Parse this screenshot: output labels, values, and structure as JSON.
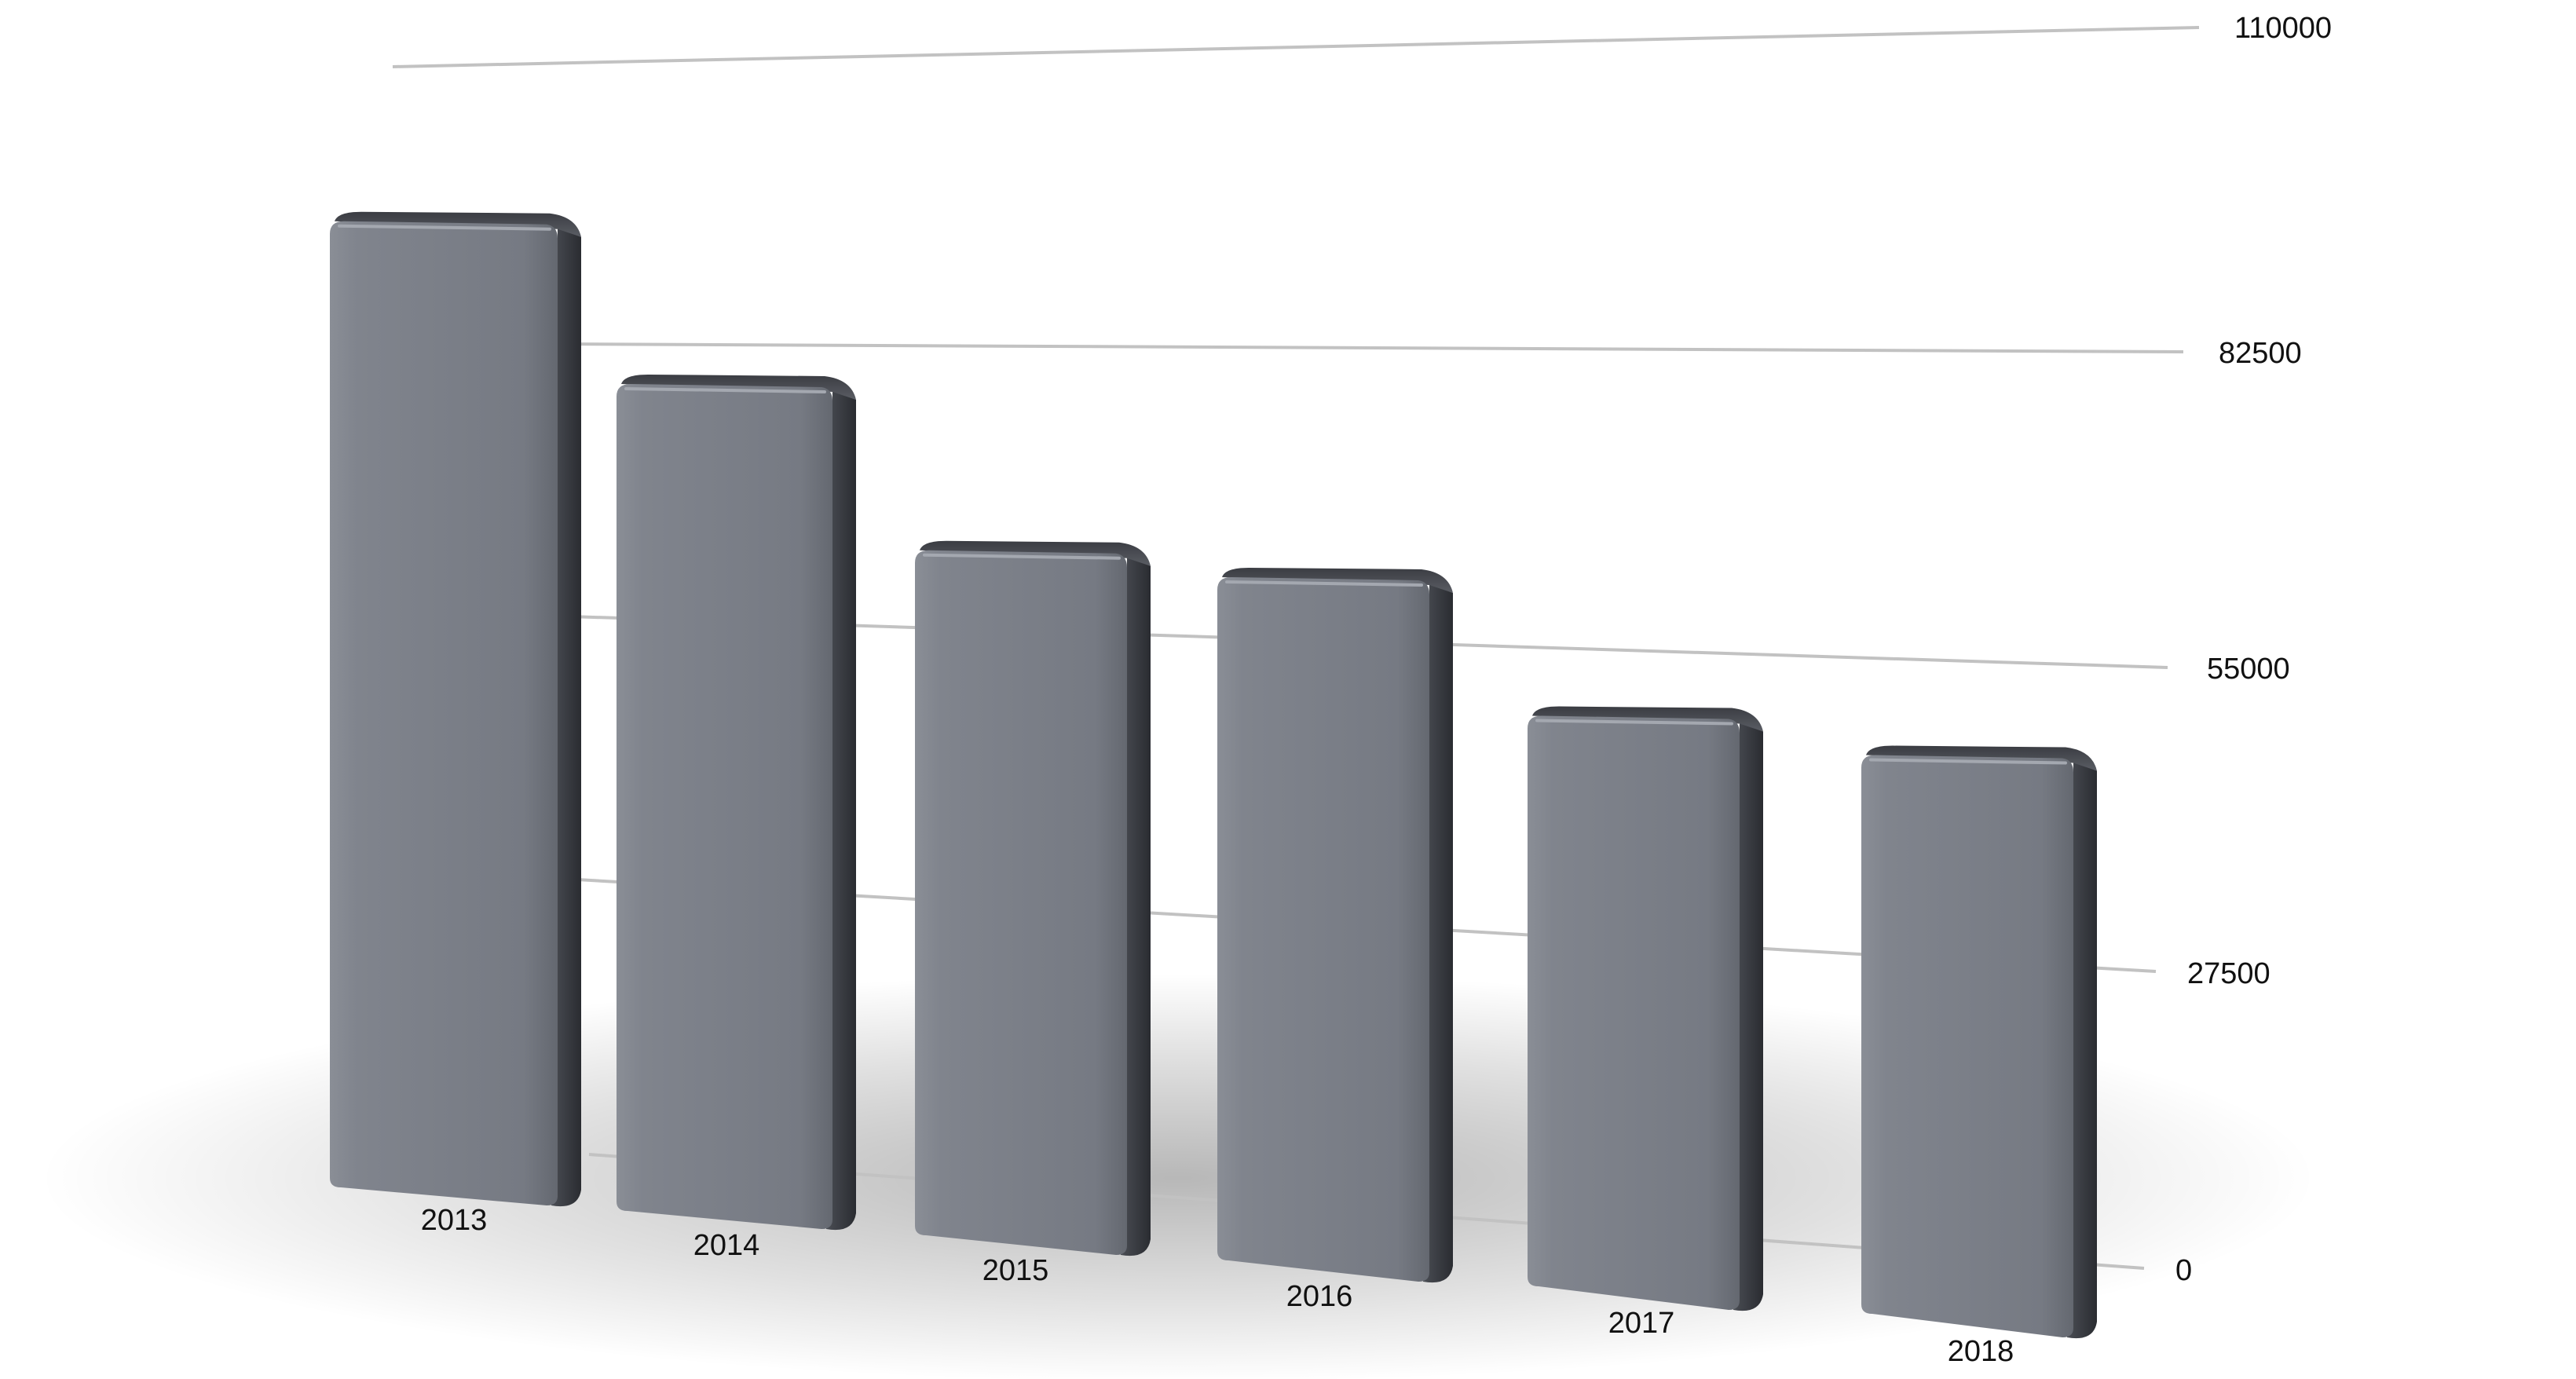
{
  "chart_data": {
    "type": "bar",
    "title": "",
    "xlabel": "",
    "ylabel": "",
    "categories": [
      "2013",
      "2014",
      "2015",
      "2016",
      "2017",
      "2018"
    ],
    "values": [
      97000,
      86000,
      74000,
      74500,
      62000,
      61000
    ],
    "ylim": [
      0,
      110000
    ],
    "yticks": [
      "0",
      "27500",
      "55000",
      "82500",
      "110000"
    ],
    "grid": true,
    "legend": "none",
    "colors": {
      "bar": "#7b7f88",
      "grid": "#c2c2c2",
      "text": "#111111"
    }
  }
}
